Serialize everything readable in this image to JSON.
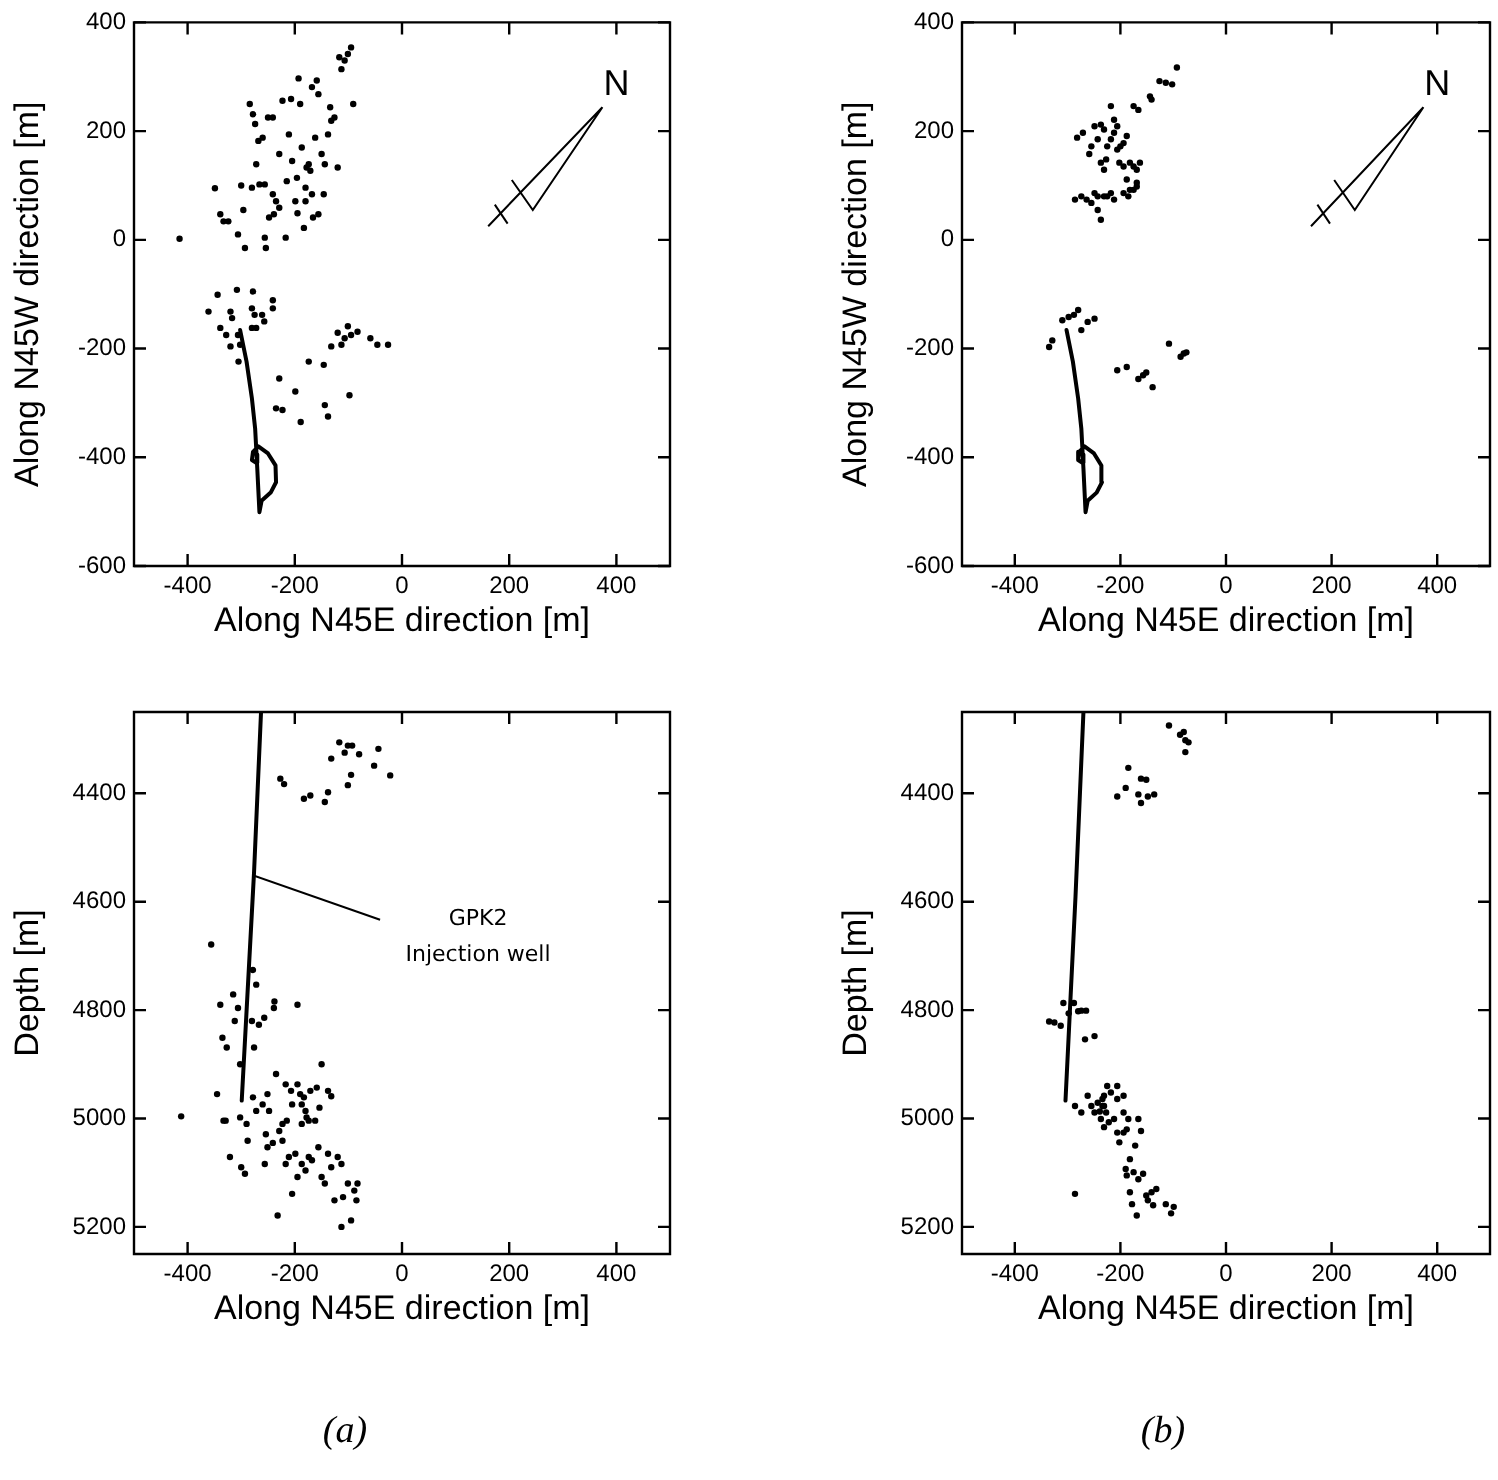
{
  "chart_data": [
    {
      "type": "scatter",
      "xlabel": "Along N45E direction [m]",
      "ylabel": "Along N45W direction [m]",
      "xlim": [
        -500,
        500
      ],
      "xticks": [
        -400,
        -200,
        0,
        200,
        400
      ],
      "ylim": [
        -600,
        400
      ],
      "yticks": [
        -600,
        -400,
        -200,
        0,
        200,
        400
      ],
      "marker": "circle",
      "annotations": [
        "N"
      ],
      "series": [
        {
          "color": "#000000",
          "x": [
            -415,
            -349,
            -339,
            -333,
            -324,
            -306,
            -300,
            -293,
            -296,
            -284,
            -278,
            -274,
            -272,
            -280,
            -266,
            -256,
            -268,
            -260,
            -256,
            -254,
            -248,
            -241,
            -235,
            -229,
            -250,
            -241,
            -239,
            -223,
            -217,
            -215,
            -211,
            -207,
            -205,
            -199,
            -195,
            -193,
            -196,
            -190,
            -187,
            -183,
            -180,
            -178,
            -171,
            -174,
            -168,
            -166,
            -162,
            -159,
            -156,
            -150,
            -146,
            -144,
            -138,
            -134,
            -132,
            -126,
            -120,
            -117,
            -113,
            -107,
            -101,
            -95,
            -91,
            -156,
            -180,
            -229,
            -168,
            -361,
            -344,
            -339,
            -328,
            -320,
            -317,
            -308,
            -306,
            -302,
            -305,
            -278,
            -280,
            -275,
            -272,
            -280,
            -261,
            -257,
            -241,
            -241,
            -320,
            -229,
            -235,
            -223,
            -199,
            -189,
            -174,
            -146,
            -144,
            -138,
            -132,
            -120,
            -113,
            -107,
            -101,
            -98,
            -95,
            -83,
            -59,
            -46,
            -26
          ],
          "values": [
            2,
            95,
            47,
            34,
            34,
            10,
            100,
            -15,
            55,
            250,
            231,
            213,
            139,
            96,
            102,
            102,
            182,
            188,
            4,
            -15,
            41,
            84,
            71,
            59,
            225,
            225,
            47,
            256,
            4,
            108,
            194,
            259,
            145,
            71,
            49,
            297,
            114,
            250,
            170,
            22,
            96,
            133,
            127,
            139,
            84,
            41,
            188,
            293,
            268,
            158,
            84,
            139,
            194,
            244,
            219,
            225,
            133,
            336,
            314,
            330,
            342,
            354,
            250,
            47,
            71,
            158,
            281,
            -132,
            -101,
            -162,
            -175,
            -132,
            -144,
            -92,
            -175,
            -193,
            -224,
            -95,
            -126,
            -138,
            -162,
            -162,
            -138,
            -150,
            -111,
            -126,
            -196,
            -255,
            -310,
            -313,
            -279,
            -335,
            -224,
            -230,
            -304,
            -325,
            -196,
            -171,
            -193,
            -181,
            -159,
            -286,
            -175,
            -169,
            -181,
            -193,
            -193
          ]
        },
        {
          "type": "line",
          "color": "#000000",
          "marker": "none",
          "x": [
            -302,
            -290,
            -280,
            -274,
            -270,
            -266,
            -262,
            -245,
            -235,
            -236,
            -250,
            -268,
            -278,
            -280,
            -272,
            -270
          ],
          "values": [
            -166,
            -224,
            -292,
            -347,
            -421,
            -501,
            -480,
            -465,
            -446,
            -415,
            -393,
            -380,
            -390,
            -405,
            -410,
            -395
          ]
        }
      ]
    },
    {
      "type": "scatter",
      "xlabel": "Along N45E direction [m]",
      "ylabel": "Along N45W direction [m]",
      "xlim": [
        -500,
        500
      ],
      "xticks": [
        -400,
        -200,
        0,
        200,
        400
      ],
      "ylim": [
        -600,
        400
      ],
      "yticks": [
        -600,
        -400,
        -200,
        0,
        200,
        400
      ],
      "marker": "circle",
      "annotations": [
        "N"
      ],
      "series": [
        {
          "color": "#000000",
          "x": [
            -282,
            -271,
            -255,
            -249,
            -243,
            -259,
            -237,
            -231,
            -225,
            -237,
            -231,
            -227,
            -218,
            -212,
            -206,
            -206,
            -200,
            -194,
            -188,
            -202,
            -194,
            -182,
            -175,
            -169,
            -163,
            -188,
            -182,
            -169,
            -286,
            -274,
            -264,
            -255,
            -249,
            -243,
            -231,
            -225,
            -218,
            -212,
            -243,
            -237,
            -194,
            -185,
            -175,
            -169,
            -175,
            -166,
            -141,
            -144,
            -126,
            -114,
            -102,
            -93,
            -212,
            -218,
            -335,
            -329,
            -310,
            -298,
            -288,
            -280,
            -274,
            -262,
            -249,
            -206,
            -188,
            -166,
            -157,
            -151,
            -139,
            -108,
            -86,
            -80,
            -75
          ],
          "values": [
            188,
            197,
            172,
            209,
            185,
            158,
            212,
            203,
            172,
            142,
            129,
            148,
            185,
            197,
            209,
            166,
            172,
            178,
            191,
            142,
            135,
            142,
            135,
            129,
            142,
            111,
            92,
            105,
            74,
            80,
            74,
            68,
            86,
            80,
            80,
            80,
            86,
            74,
            55,
            37,
            86,
            80,
            92,
            98,
            246,
            239,
            258,
            264,
            292,
            289,
            286,
            317,
            221,
            246,
            -197,
            -185,
            -148,
            -142,
            -138,
            -129,
            -166,
            -151,
            -145,
            -240,
            -234,
            -256,
            -249,
            -244,
            -271,
            -191,
            -215,
            -209,
            -207
          ]
        },
        {
          "type": "line",
          "color": "#000000",
          "marker": "none",
          "x": [
            -302,
            -290,
            -280,
            -274,
            -270,
            -266,
            -262,
            -245,
            -235,
            -236,
            -250,
            -268,
            -278,
            -280,
            -272,
            -270
          ],
          "values": [
            -166,
            -224,
            -292,
            -347,
            -421,
            -501,
            -480,
            -465,
            -446,
            -415,
            -393,
            -380,
            -390,
            -405,
            -410,
            -395
          ]
        }
      ]
    },
    {
      "type": "scatter",
      "xlabel": "Along N45E direction [m]",
      "ylabel": "Depth [m]",
      "xlim": [
        -500,
        500
      ],
      "xticks": [
        -400,
        -200,
        0,
        200,
        400
      ],
      "ylim": [
        5250,
        4250
      ],
      "yticks": [
        4400,
        4600,
        4800,
        5000,
        5200
      ],
      "marker": "circle",
      "annotations": [
        {
          "text": "GPK2\nInjection well",
          "x": -276,
          "y": 4552
        },
        "(a)"
      ],
      "series": [
        {
          "color": "#000000",
          "x": [
            -227,
            -220,
            -183,
            -171,
            -144,
            -138,
            -132,
            -117,
            -107,
            -101,
            -93,
            -80,
            -101,
            -95,
            -52,
            -44,
            -22,
            -356,
            -339,
            -315,
            -306,
            -312,
            -335,
            -327,
            -278,
            -272,
            -276,
            -280,
            -267,
            -257,
            -302,
            -238,
            -239,
            -195,
            -345,
            -333,
            -329,
            -412,
            -302,
            -290,
            -288,
            -300,
            -293,
            -321,
            -278,
            -272,
            -260,
            -251,
            -248,
            -254,
            -251,
            -241,
            -256,
            -235,
            -229,
            -223,
            -215,
            -217,
            -207,
            -205,
            -195,
            -190,
            -187,
            -183,
            -180,
            -178,
            -174,
            -187,
            -171,
            -159,
            -154,
            -150,
            -162,
            -138,
            -132,
            -223,
            -211,
            -199,
            -195,
            -205,
            -187,
            -180,
            -174,
            -168,
            -156,
            -150,
            -144,
            -138,
            -120,
            -113,
            -132,
            -110,
            -101,
            -126,
            -89,
            -83,
            -85,
            -113,
            -95,
            -232,
            -217
          ],
          "values": [
            4373,
            4383,
            4410,
            4404,
            4416,
            4398,
            4336,
            4306,
            4325,
            4312,
            4312,
            4328,
            4385,
            4366,
            4349,
            4318,
            4367,
            4679,
            4790,
            4771,
            4796,
            4820,
            4851,
            4869,
            4726,
            4753,
            4869,
            4820,
            4827,
            4814,
            4900,
            4784,
            4796,
            4790,
            4955,
            5004,
            5004,
            4996,
            4998,
            5010,
            5041,
            5090,
            5102,
            5071,
            4961,
            4986,
            4974,
            4955,
            4986,
            5029,
            5053,
            5045,
            5084,
            4918,
            5023,
            5010,
            5004,
            4937,
            4949,
            4974,
            4937,
            4955,
            4974,
            4961,
            4986,
            4998,
            5004,
            5010,
            4949,
            4943,
            4980,
            4900,
            5004,
            4949,
            4959,
            5041,
            5071,
            5065,
            5108,
            5139,
            5084,
            5096,
            5071,
            5077,
            5053,
            5108,
            5120,
            5065,
            5071,
            5084,
            5090,
            5145,
            5120,
            5151,
            5133,
            5120,
            5151,
            5200,
            5188,
            5179,
            5084
          ]
        },
        {
          "type": "line",
          "color": "#000000",
          "marker": "none",
          "x": [
            -263,
            -276,
            -299
          ],
          "values": [
            4250,
            4545,
            4967
          ]
        }
      ]
    },
    {
      "type": "scatter",
      "xlabel": "Along N45E direction [m]",
      "ylabel": "Depth [m]",
      "xlim": [
        -500,
        500
      ],
      "xticks": [
        -400,
        -200,
        0,
        200,
        400
      ],
      "ylim": [
        5250,
        4250
      ],
      "yticks": [
        4400,
        4600,
        4800,
        5000,
        5200
      ],
      "marker": "circle",
      "annotations": [
        "(b)"
      ],
      "series": [
        {
          "color": "#000000",
          "x": [
            -108,
            -87,
            -80,
            -77,
            -71,
            -77,
            -185,
            -190,
            -206,
            -161,
            -151,
            -166,
            -161,
            -148,
            -136,
            -335,
            -325,
            -313,
            -308,
            -298,
            -288,
            -280,
            -274,
            -265,
            -267,
            -249,
            -286,
            -274,
            -262,
            -255,
            -249,
            -243,
            -239,
            -234,
            -231,
            -225,
            -218,
            -237,
            -231,
            -222,
            -212,
            -206,
            -202,
            -194,
            -188,
            -185,
            -194,
            -206,
            -231,
            -227,
            -234,
            -166,
            -161,
            -172,
            -182,
            -190,
            -188,
            -175,
            -166,
            -157,
            -182,
            -178,
            -169,
            -151,
            -141,
            -132,
            -148,
            -138,
            -114,
            -99,
            -104,
            -286,
            -194,
            -206
          ],
          "values": [
            4275,
            4292,
            4287,
            4302,
            4306,
            4324,
            4353,
            4390,
            4406,
            4373,
            4375,
            4402,
            4418,
            4406,
            4402,
            4821,
            4823,
            4829,
            4787,
            4806,
            4787,
            4802,
            4801,
            4801,
            4854,
            4848,
            4977,
            4989,
            4958,
            4977,
            4989,
            4971,
            4987,
            4977,
            4958,
            4940,
            4952,
            5001,
            5016,
            5007,
            5001,
            5026,
            5044,
            5026,
            5020,
            5001,
            4989,
            4964,
            4977,
            4989,
            4964,
            5001,
            5023,
            5050,
            5075,
            5093,
            5105,
            5099,
            5112,
            5102,
            5136,
            5158,
            5179,
            5142,
            5136,
            5130,
            5151,
            5160,
            5158,
            5163,
            5175,
            5139,
            4958,
            4940
          ]
        },
        {
          "type": "line",
          "color": "#000000",
          "marker": "none",
          "x": [
            -270,
            -285,
            -304
          ],
          "values": [
            4250,
            4590,
            4967
          ]
        }
      ]
    }
  ]
}
